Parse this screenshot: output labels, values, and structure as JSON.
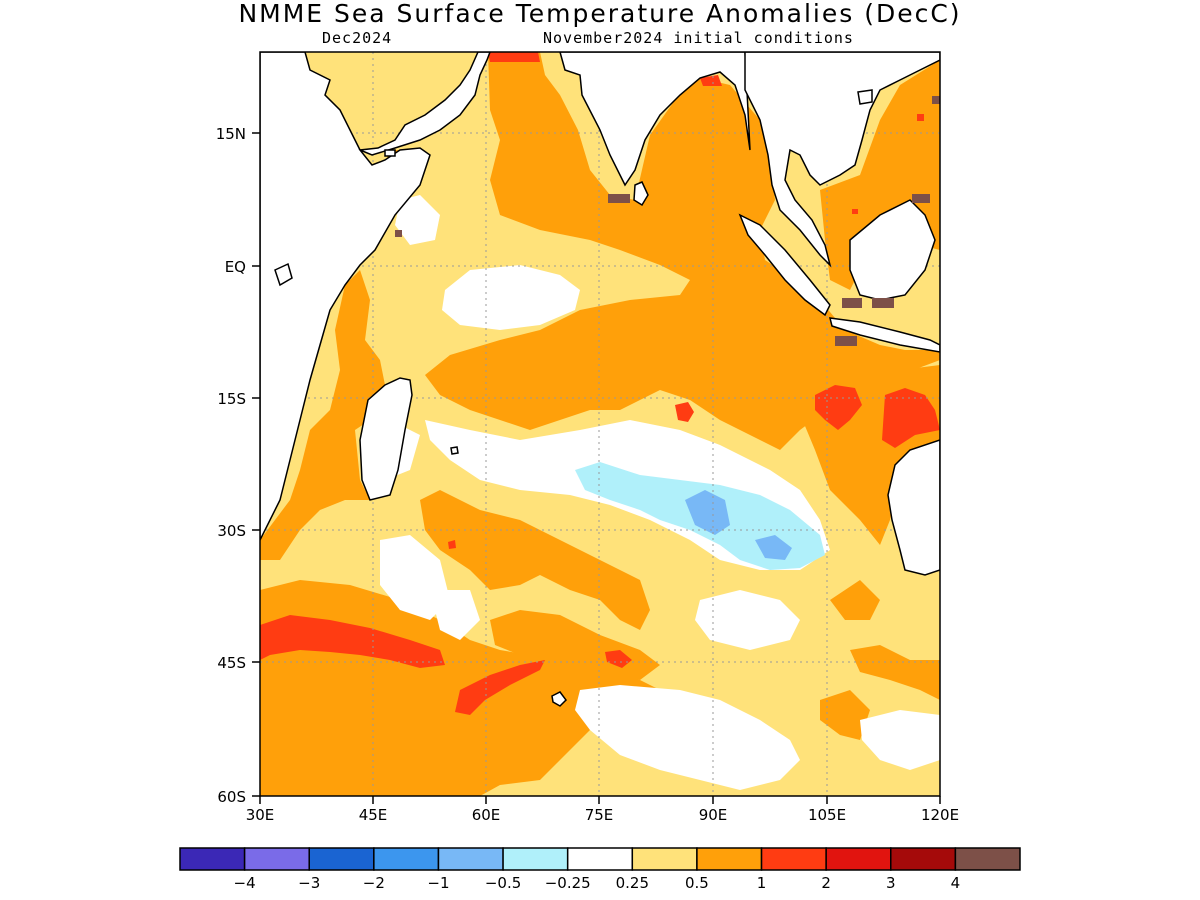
{
  "title": "NMME Sea Surface Temperature Anomalies (DecC)",
  "subtitle_left": "Dec2024",
  "subtitle_right": "November2024 initial conditions",
  "map": {
    "lon_range": [
      30,
      120
    ],
    "lat_range": [
      -60,
      24
    ],
    "lat_labels": [
      "15N",
      "EQ",
      "15S",
      "30S",
      "45S",
      "60S"
    ],
    "lon_labels": [
      "30E",
      "45E",
      "60E",
      "75E",
      "90E",
      "105E",
      "120E"
    ],
    "grid": "dotted gray"
  },
  "colorbar": {
    "colors": [
      "#3b28b6",
      "#7a6be8",
      "#1a64d2",
      "#3c96ee",
      "#78b8f6",
      "#b0f0fa",
      "#ffffff",
      "#ffe27a",
      "#ffa00a",
      "#ff3c12",
      "#e1140f",
      "#a50a0a",
      "#7d5048"
    ],
    "labels": [
      "−4",
      "−3",
      "−2",
      "−1",
      "−0.5",
      "−0.25",
      "0.25",
      "0.5",
      "1",
      "2",
      "3",
      "4"
    ]
  },
  "colors": {
    "weak_warm": "#ffe27a",
    "warm": "#ffa00a",
    "strong_warm": "#ff3c12",
    "very_strong_warm": "#e1140f",
    "weak_cool": "#b0f0fa",
    "cool": "#78b8f6",
    "land_edge": "#7d5048"
  }
}
